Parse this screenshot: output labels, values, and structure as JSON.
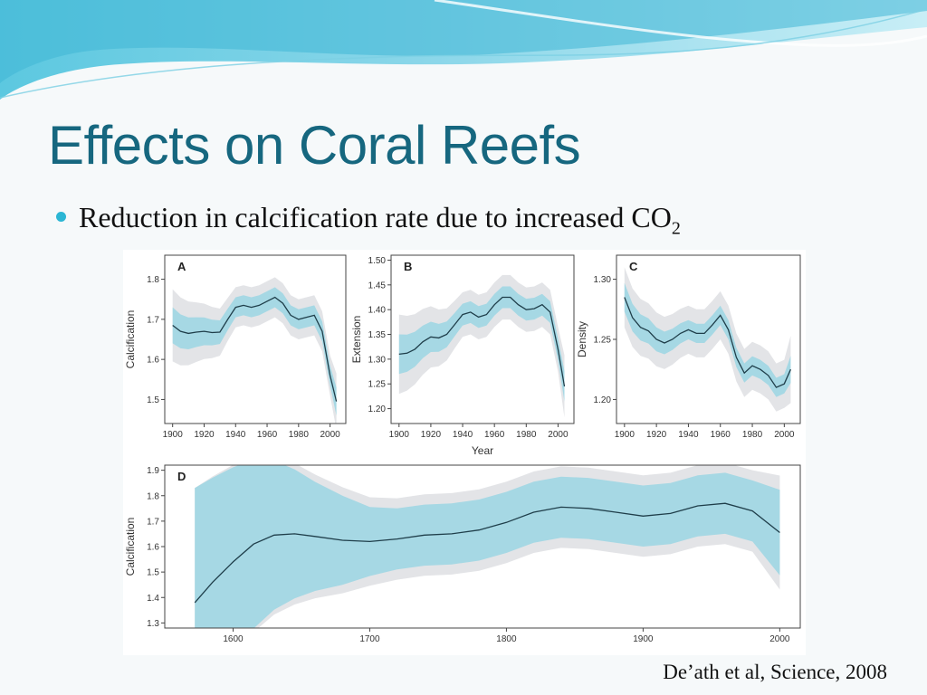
{
  "slide": {
    "title": "Effects on Coral Reefs",
    "bullet": {
      "text": "Reduction in calcification rate due to increased CO",
      "subscript": "2"
    },
    "citation": "De’ath et al, Science, 2008"
  },
  "colors": {
    "title": "#16677f",
    "bullet": "#2bb6d4",
    "band_inner": "#a6d8e4",
    "band_outer": "#e3e4e7",
    "line": "#1f3e4a"
  },
  "chart_data": [
    {
      "id": "A",
      "type": "line",
      "label": "A",
      "xlabel": "",
      "ylabel": "Calcification",
      "xlim": [
        1895,
        2010
      ],
      "ylim": [
        1.44,
        1.86
      ],
      "xticks": [
        1900,
        1920,
        1940,
        1960,
        1980,
        2000
      ],
      "yticks": [
        1.5,
        1.6,
        1.7,
        1.8
      ],
      "x": [
        1900,
        1905,
        1910,
        1915,
        1920,
        1925,
        1930,
        1935,
        1940,
        1945,
        1950,
        1955,
        1960,
        1965,
        1970,
        1975,
        1980,
        1985,
        1990,
        1995,
        2000,
        2004
      ],
      "y": [
        1.685,
        1.67,
        1.665,
        1.668,
        1.67,
        1.667,
        1.668,
        1.7,
        1.73,
        1.735,
        1.73,
        1.735,
        1.745,
        1.755,
        1.74,
        1.71,
        1.7,
        1.705,
        1.71,
        1.67,
        1.56,
        1.495
      ],
      "ci_inner": [
        0.045,
        0.025
      ],
      "ci_outer": [
        0.09,
        0.05
      ]
    },
    {
      "id": "B",
      "type": "line",
      "label": "B",
      "xlabel": "Year",
      "ylabel": "Extension",
      "xlim": [
        1895,
        2010
      ],
      "ylim": [
        1.17,
        1.51
      ],
      "xticks": [
        1900,
        1920,
        1940,
        1960,
        1980,
        2000
      ],
      "yticks": [
        1.2,
        1.25,
        1.3,
        1.35,
        1.4,
        1.45,
        1.5
      ],
      "x": [
        1900,
        1905,
        1910,
        1915,
        1920,
        1925,
        1930,
        1935,
        1940,
        1945,
        1950,
        1955,
        1960,
        1965,
        1970,
        1975,
        1980,
        1985,
        1990,
        1995,
        2000,
        2004
      ],
      "y": [
        1.31,
        1.312,
        1.32,
        1.335,
        1.345,
        1.343,
        1.35,
        1.37,
        1.39,
        1.395,
        1.385,
        1.39,
        1.41,
        1.425,
        1.425,
        1.41,
        1.4,
        1.402,
        1.41,
        1.395,
        1.32,
        1.245
      ],
      "ci_inner": [
        0.04,
        0.022
      ],
      "ci_outer": [
        0.08,
        0.045
      ]
    },
    {
      "id": "C",
      "type": "line",
      "label": "C",
      "xlabel": "",
      "ylabel": "Density",
      "xlim": [
        1895,
        2010
      ],
      "ylim": [
        1.18,
        1.32
      ],
      "xticks": [
        1900,
        1920,
        1940,
        1960,
        1980,
        2000
      ],
      "yticks": [
        1.2,
        1.25,
        1.3
      ],
      "x": [
        1900,
        1905,
        1910,
        1915,
        1920,
        1925,
        1930,
        1935,
        1940,
        1945,
        1950,
        1955,
        1960,
        1965,
        1970,
        1975,
        1980,
        1985,
        1990,
        1995,
        2000,
        2004
      ],
      "y": [
        1.285,
        1.268,
        1.26,
        1.257,
        1.25,
        1.247,
        1.25,
        1.255,
        1.258,
        1.255,
        1.255,
        1.262,
        1.27,
        1.258,
        1.235,
        1.222,
        1.228,
        1.225,
        1.22,
        1.21,
        1.213,
        1.225
      ],
      "ci_inner": [
        0.012,
        0.008
      ],
      "ci_outer": [
        0.025,
        0.02
      ]
    },
    {
      "id": "D",
      "type": "line",
      "label": "D",
      "xlabel": "",
      "ylabel": "Calcification",
      "xlim": [
        1550,
        2015
      ],
      "ylim": [
        1.28,
        1.92
      ],
      "xticks": [
        1600,
        1700,
        1800,
        1900,
        2000
      ],
      "yticks": [
        1.3,
        1.4,
        1.5,
        1.6,
        1.7,
        1.8,
        1.9
      ],
      "x": [
        1572,
        1585,
        1600,
        1615,
        1630,
        1645,
        1660,
        1680,
        1700,
        1720,
        1740,
        1760,
        1780,
        1800,
        1820,
        1840,
        1860,
        1880,
        1900,
        1920,
        1940,
        1960,
        1980,
        2000
      ],
      "y": [
        1.38,
        1.46,
        1.54,
        1.61,
        1.645,
        1.65,
        1.64,
        1.625,
        1.62,
        1.63,
        1.645,
        1.65,
        1.665,
        1.695,
        1.735,
        1.755,
        1.75,
        1.735,
        1.72,
        1.73,
        1.76,
        1.77,
        1.74,
        1.655
      ],
      "ci_inner": [
        0.45,
        0.12
      ],
      "ci_outer": [
        0.45,
        0.16
      ]
    }
  ]
}
